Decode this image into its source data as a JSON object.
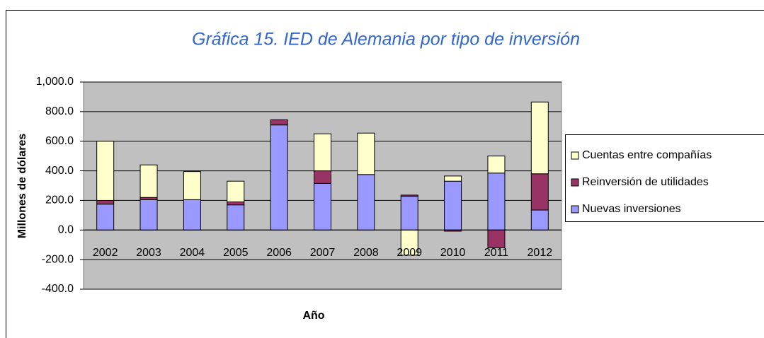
{
  "chart_data": {
    "type": "stacked_bar",
    "title": "Gráfica 15. IED de Alemania por tipo de inversión",
    "xlabel": "Año",
    "ylabel": "Millones de dólares",
    "categories": [
      "2002",
      "2003",
      "2004",
      "2005",
      "2006",
      "2007",
      "2008",
      "2009",
      "2010",
      "2011",
      "2012"
    ],
    "series": [
      {
        "name": "Nuevas inversiones",
        "color": "#9999ff",
        "values": [
          175,
          205,
          205,
          170,
          710,
          315,
          375,
          228,
          330,
          385,
          135
        ]
      },
      {
        "name": "Reinversión de utilidades",
        "color": "#993366",
        "values": [
          25,
          15,
          0,
          20,
          35,
          85,
          0,
          8,
          -8,
          -120,
          245
        ]
      },
      {
        "name": "Cuentas entre compañías",
        "color": "#ffffcc",
        "values": [
          400,
          220,
          190,
          140,
          0,
          250,
          280,
          -170,
          35,
          115,
          485
        ]
      }
    ],
    "ylim": [
      -400,
      1000
    ],
    "yticks": [
      {
        "value": -400,
        "label": "-400.0"
      },
      {
        "value": -200,
        "label": "-200.0"
      },
      {
        "value": 0,
        "label": "0.0"
      },
      {
        "value": 200,
        "label": "200.0"
      },
      {
        "value": 400,
        "label": "400.0"
      },
      {
        "value": 600,
        "label": "600.0"
      },
      {
        "value": 800,
        "label": "800.0"
      },
      {
        "value": 1000,
        "label": "1,000.0"
      }
    ],
    "grid": true,
    "legend": "right"
  }
}
